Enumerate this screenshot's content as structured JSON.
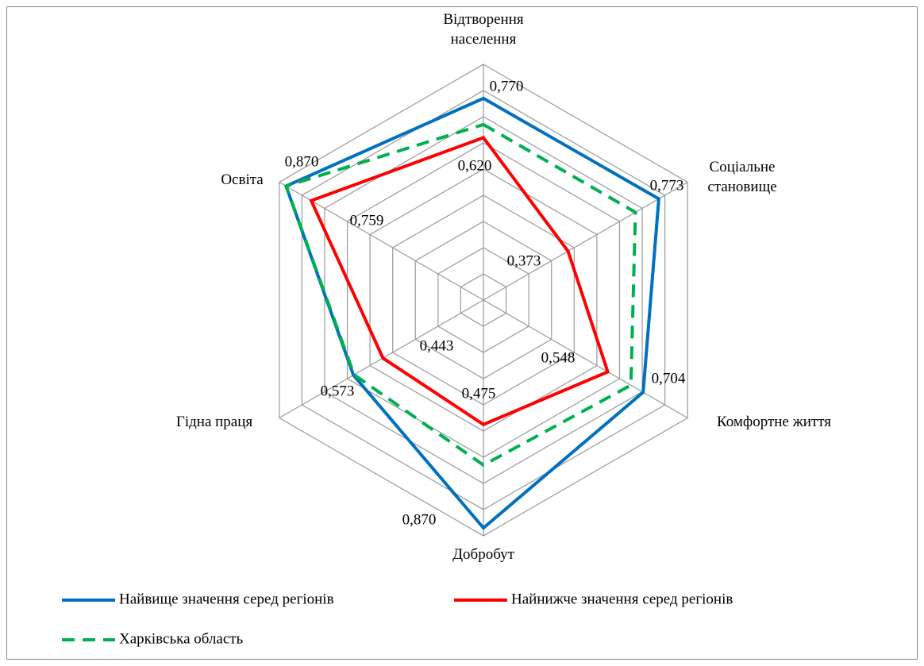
{
  "chart_data": {
    "type": "radar",
    "categories": [
      "Відтворення населення",
      "Соціальне становище",
      "Комфортне життя",
      "Добробут",
      "Гідна праця",
      "Освіта"
    ],
    "ylim": [
      0,
      0.9
    ],
    "yticks": [
      0,
      0.1,
      0.2,
      0.3,
      0.4,
      0.5,
      0.6,
      0.7,
      0.8,
      0.9
    ],
    "grid": true,
    "series": [
      {
        "name": "Найвище значення серед регіонів",
        "color": "#0070c0",
        "dash": "solid",
        "values": [
          0.77,
          0.773,
          0.704,
          0.87,
          0.573,
          0.87
        ],
        "value_labels": [
          "0,770",
          "0,773",
          "0,704",
          "0,870",
          "0,573",
          "0,870"
        ]
      },
      {
        "name": "Найнижче значення серед регіонів",
        "color": "#ff0000",
        "dash": "solid",
        "values": [
          0.62,
          0.373,
          0.548,
          0.475,
          0.443,
          0.759
        ],
        "value_labels": [
          "0,620",
          "0,373",
          "0,548",
          "0,475",
          "0,443",
          "0,759"
        ]
      },
      {
        "name": "Харківська область",
        "color": "#00b050",
        "dash": "dashed",
        "values": [
          0.67,
          0.67,
          0.65,
          0.63,
          0.57,
          0.87
        ]
      }
    ]
  }
}
